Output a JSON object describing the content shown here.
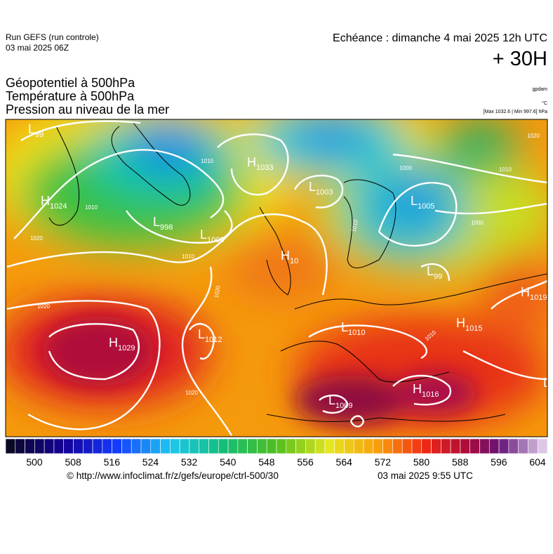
{
  "header": {
    "run": "Run GEFS (run controle)",
    "run_date": "03 mai 2025 06Z",
    "forecast": "Echéance : dimanche 4 mai 2025 12h UTC",
    "lead": "+ 30H"
  },
  "titles": [
    "Géopotentiel à 500hPa",
    "Température à 500hPa",
    "Pression au niveau de la mer"
  ],
  "units": {
    "geopotential": "gpdam",
    "temperature": "°C",
    "pressure": "[Max 1032.6 | Min 997.6] hPa"
  },
  "centers": [
    {
      "type": "L",
      "value": "99"
    },
    {
      "type": "H",
      "value": "1024"
    },
    {
      "type": "L",
      "value": "998"
    },
    {
      "type": "L",
      "value": "1000"
    },
    {
      "type": "H",
      "value": "1033"
    },
    {
      "type": "L",
      "value": "1003"
    },
    {
      "type": "H",
      "value": "10"
    },
    {
      "type": "L",
      "value": "1005"
    },
    {
      "type": "L",
      "value": "99"
    },
    {
      "type": "H",
      "value": "1019"
    },
    {
      "type": "H",
      "value": "1015"
    },
    {
      "type": "L",
      "value": "1010"
    },
    {
      "type": "L",
      "value": "1012"
    },
    {
      "type": "H",
      "value": "1029"
    },
    {
      "type": "H",
      "value": "1016"
    },
    {
      "type": "L",
      "value": "1009"
    },
    {
      "type": "L",
      "value": ""
    }
  ],
  "isobar_labels": [
    "1010",
    "1010",
    "1020",
    "1010",
    "1020",
    "1020",
    "1020",
    "1000",
    "1010",
    "1000",
    "1010",
    "1020",
    "1010"
  ],
  "colorbar": {
    "labels": [
      "500",
      "508",
      "516",
      "524",
      "532",
      "540",
      "548",
      "556",
      "564",
      "572",
      "580",
      "588",
      "596",
      "604"
    ]
  },
  "footer": {
    "source": "© http://www.infoclimat.fr/z/gefs/europe/ctrl-500/30",
    "generated": "03 mai 2025  9:55 UTC"
  }
}
